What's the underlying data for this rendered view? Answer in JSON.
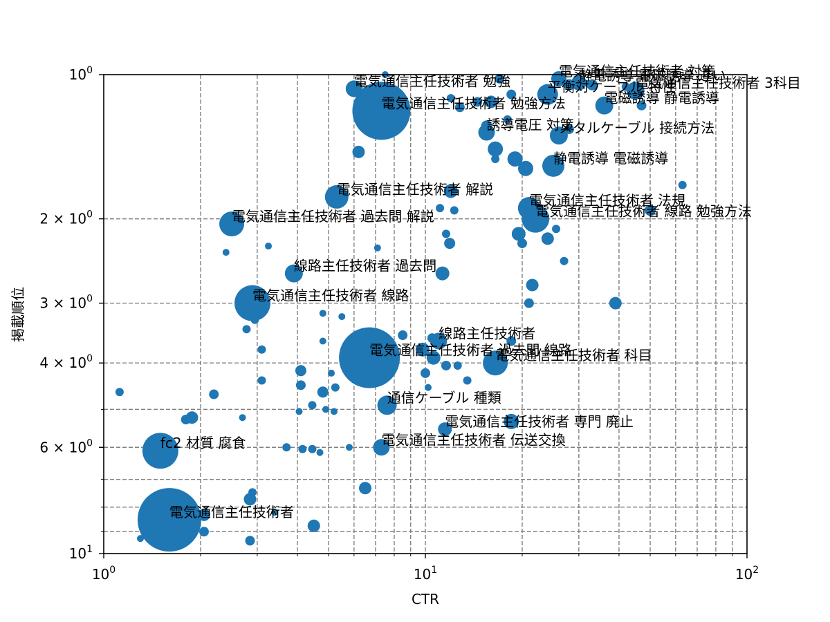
{
  "chart_data": {
    "type": "scatter",
    "xlabel": "CTR",
    "ylabel": "掲載順位",
    "x_scale": "log",
    "y_scale": "log",
    "y_inverted": true,
    "xlim": [
      1,
      100
    ],
    "ylim": [
      10,
      1
    ],
    "grid": true,
    "color": "#1f77b4",
    "x_ticks": [
      {
        "value": 1,
        "base": "10",
        "exp": "0"
      },
      {
        "value": 10,
        "base": "10",
        "exp": "1"
      },
      {
        "value": 100,
        "base": "10",
        "exp": "2"
      }
    ],
    "y_ticks": [
      {
        "value": 1,
        "base": "10",
        "exp": "0"
      },
      {
        "value": 2,
        "base": "2 × 10",
        "exp": "0"
      },
      {
        "value": 3,
        "base": "3 × 10",
        "exp": "0"
      },
      {
        "value": 4,
        "base": "4 × 10",
        "exp": "0"
      },
      {
        "value": 6,
        "base": "6 × 10",
        "exp": "0"
      },
      {
        "value": 10,
        "base": "10",
        "exp": "1"
      }
    ],
    "labeled_points": [
      {
        "label": "電気通信主任技術者",
        "x": 1.6,
        "y": 8.5,
        "size": 46
      },
      {
        "label": "fc2 材質 腐食",
        "x": 1.5,
        "y": 6.1,
        "size": 26
      },
      {
        "label": "電気通信主任技術者 伝送交換",
        "x": 7.3,
        "y": 6.0,
        "size": 12
      },
      {
        "label": "電気通信主任技術者 専門 廃止",
        "x": 11.5,
        "y": 5.5,
        "size": 10
      },
      {
        "label": "通信ケーブル 種類",
        "x": 7.6,
        "y": 4.9,
        "size": 14
      },
      {
        "label": "線路主任技術者",
        "x": 11.0,
        "y": 3.6,
        "size": 12
      },
      {
        "label": "電気通信主任技術者 過去問 線路",
        "x": 6.7,
        "y": 3.9,
        "size": 44
      },
      {
        "label": "電気通信主任技術者 科目",
        "x": 16.5,
        "y": 4.0,
        "size": 18
      },
      {
        "label": "電気通信主任技術者 線路",
        "x": 2.9,
        "y": 3.0,
        "size": 26
      },
      {
        "label": "線路主任技術者 過去問",
        "x": 3.9,
        "y": 2.6,
        "size": 13
      },
      {
        "label": "電気通信主任技術者 過去問 解説",
        "x": 2.5,
        "y": 2.05,
        "size": 18
      },
      {
        "label": "電気通信主任技術者 解説",
        "x": 5.3,
        "y": 1.8,
        "size": 17
      },
      {
        "label": "電気通信主任技術者 法規",
        "x": 21.0,
        "y": 1.9,
        "size": 16
      },
      {
        "label": "電気通信主任技術者 線路 勉強方法",
        "x": 22.0,
        "y": 2.0,
        "size": 20
      },
      {
        "label": "静電誘導 電磁誘導",
        "x": 25.0,
        "y": 1.55,
        "size": 16
      },
      {
        "label": "誘導電圧 対策",
        "x": 15.5,
        "y": 1.32,
        "size": 12
      },
      {
        "label": "メタルケーブル 接続方法",
        "x": 26.0,
        "y": 1.34,
        "size": 13
      },
      {
        "label": "電気通信主任技術者 勉強方法",
        "x": 7.3,
        "y": 1.19,
        "size": 42
      },
      {
        "label": "電磁誘導 静電誘導",
        "x": 36.0,
        "y": 1.16,
        "size": 13
      },
      {
        "label": "平衡対ケーブル 特性",
        "x": 24.0,
        "y": 1.1,
        "size": 15
      },
      {
        "label": "電気通信主任技術者 勉強",
        "x": 6.0,
        "y": 1.07,
        "size": 12
      },
      {
        "label": "電気通信主任技術者 3科目",
        "x": 45.0,
        "y": 1.08,
        "size": 13
      },
      {
        "label": "電気通信主任技術者 対策",
        "x": 26.0,
        "y": 1.02,
        "size": 11
      },
      {
        "label": "静電誘導 電磁誘導 違い",
        "x": 30.0,
        "y": 1.04,
        "size": 11
      }
    ],
    "points": [
      {
        "x": 1.12,
        "y": 4.6,
        "size": 6
      },
      {
        "x": 1.3,
        "y": 9.3,
        "size": 5
      },
      {
        "x": 1.8,
        "y": 5.25,
        "size": 7
      },
      {
        "x": 1.88,
        "y": 5.2,
        "size": 9
      },
      {
        "x": 2.05,
        "y": 8.3,
        "size": 9
      },
      {
        "x": 2.05,
        "y": 9.0,
        "size": 7
      },
      {
        "x": 2.2,
        "y": 4.65,
        "size": 7
      },
      {
        "x": 2.38,
        "y": 2.05,
        "size": 6
      },
      {
        "x": 2.4,
        "y": 2.35,
        "size": 5
      },
      {
        "x": 2.7,
        "y": 5.2,
        "size": 5
      },
      {
        "x": 2.78,
        "y": 3.4,
        "size": 6
      },
      {
        "x": 2.85,
        "y": 9.4,
        "size": 7
      },
      {
        "x": 2.85,
        "y": 7.7,
        "size": 9
      },
      {
        "x": 2.9,
        "y": 7.45,
        "size": 6
      },
      {
        "x": 2.95,
        "y": 3.25,
        "size": 6
      },
      {
        "x": 3.1,
        "y": 3.75,
        "size": 6
      },
      {
        "x": 3.1,
        "y": 4.35,
        "size": 6
      },
      {
        "x": 3.25,
        "y": 2.28,
        "size": 5
      },
      {
        "x": 3.4,
        "y": 8.2,
        "size": 5
      },
      {
        "x": 3.7,
        "y": 6.0,
        "size": 6
      },
      {
        "x": 4.1,
        "y": 4.15,
        "size": 8
      },
      {
        "x": 4.1,
        "y": 4.45,
        "size": 7
      },
      {
        "x": 4.05,
        "y": 5.05,
        "size": 5
      },
      {
        "x": 4.15,
        "y": 6.05,
        "size": 6
      },
      {
        "x": 4.45,
        "y": 4.9,
        "size": 6
      },
      {
        "x": 4.45,
        "y": 6.05,
        "size": 6
      },
      {
        "x": 4.5,
        "y": 8.75,
        "size": 9
      },
      {
        "x": 4.7,
        "y": 6.15,
        "size": 5
      },
      {
        "x": 4.8,
        "y": 3.15,
        "size": 5
      },
      {
        "x": 4.8,
        "y": 3.6,
        "size": 5
      },
      {
        "x": 4.8,
        "y": 4.6,
        "size": 8
      },
      {
        "x": 4.9,
        "y": 5.0,
        "size": 5
      },
      {
        "x": 5.1,
        "y": 4.2,
        "size": 5
      },
      {
        "x": 5.2,
        "y": 5.05,
        "size": 5
      },
      {
        "x": 5.25,
        "y": 4.5,
        "size": 6
      },
      {
        "x": 5.5,
        "y": 3.2,
        "size": 5
      },
      {
        "x": 5.8,
        "y": 6.0,
        "size": 5
      },
      {
        "x": 6.2,
        "y": 1.45,
        "size": 9
      },
      {
        "x": 6.5,
        "y": 7.3,
        "size": 9
      },
      {
        "x": 7.1,
        "y": 2.3,
        "size": 5
      },
      {
        "x": 7.5,
        "y": 1.0,
        "size": 5
      },
      {
        "x": 8.5,
        "y": 3.5,
        "size": 7
      },
      {
        "x": 9.8,
        "y": 3.75,
        "size": 10
      },
      {
        "x": 10.0,
        "y": 4.2,
        "size": 7
      },
      {
        "x": 10.2,
        "y": 4.5,
        "size": 5
      },
      {
        "x": 10.5,
        "y": 3.55,
        "size": 7
      },
      {
        "x": 10.6,
        "y": 3.9,
        "size": 10
      },
      {
        "x": 11.1,
        "y": 1.9,
        "size": 6
      },
      {
        "x": 11.3,
        "y": 2.6,
        "size": 10
      },
      {
        "x": 11.6,
        "y": 4.05,
        "size": 7
      },
      {
        "x": 11.6,
        "y": 2.15,
        "size": 6
      },
      {
        "x": 11.9,
        "y": 2.25,
        "size": 8
      },
      {
        "x": 12.0,
        "y": 1.75,
        "size": 10
      },
      {
        "x": 12.0,
        "y": 1.12,
        "size": 6
      },
      {
        "x": 12.3,
        "y": 1.92,
        "size": 6
      },
      {
        "x": 12.6,
        "y": 4.05,
        "size": 6
      },
      {
        "x": 12.8,
        "y": 1.17,
        "size": 7
      },
      {
        "x": 13.5,
        "y": 4.35,
        "size": 6
      },
      {
        "x": 14.5,
        "y": 1.14,
        "size": 7
      },
      {
        "x": 15.5,
        "y": 1.28,
        "size": 8
      },
      {
        "x": 16.0,
        "y": 1.14,
        "size": 9
      },
      {
        "x": 16.5,
        "y": 1.43,
        "size": 11
      },
      {
        "x": 16.5,
        "y": 1.5,
        "size": 6
      },
      {
        "x": 17.0,
        "y": 1.02,
        "size": 7
      },
      {
        "x": 18.0,
        "y": 1.24,
        "size": 6
      },
      {
        "x": 18.5,
        "y": 3.6,
        "size": 7
      },
      {
        "x": 18.5,
        "y": 5.3,
        "size": 11
      },
      {
        "x": 18.5,
        "y": 1.1,
        "size": 7
      },
      {
        "x": 19.0,
        "y": 1.5,
        "size": 11
      },
      {
        "x": 19.5,
        "y": 2.15,
        "size": 10
      },
      {
        "x": 20.0,
        "y": 2.25,
        "size": 7
      },
      {
        "x": 20.5,
        "y": 1.57,
        "size": 11
      },
      {
        "x": 21.0,
        "y": 3.0,
        "size": 7
      },
      {
        "x": 21.5,
        "y": 2.75,
        "size": 9
      },
      {
        "x": 22.5,
        "y": 1.9,
        "size": 6
      },
      {
        "x": 23.0,
        "y": 1.95,
        "size": 7
      },
      {
        "x": 24.0,
        "y": 2.2,
        "size": 9
      },
      {
        "x": 25.5,
        "y": 2.1,
        "size": 6
      },
      {
        "x": 27.0,
        "y": 2.45,
        "size": 6
      },
      {
        "x": 28.0,
        "y": 1.3,
        "size": 7
      },
      {
        "x": 28.0,
        "y": 1.05,
        "size": 8
      },
      {
        "x": 33.0,
        "y": 1.05,
        "size": 8
      },
      {
        "x": 39.0,
        "y": 3.0,
        "size": 9
      },
      {
        "x": 42.0,
        "y": 1.06,
        "size": 6
      },
      {
        "x": 47.0,
        "y": 1.16,
        "size": 7
      },
      {
        "x": 50.0,
        "y": 1.92,
        "size": 8
      },
      {
        "x": 63.0,
        "y": 1.7,
        "size": 6
      }
    ]
  }
}
